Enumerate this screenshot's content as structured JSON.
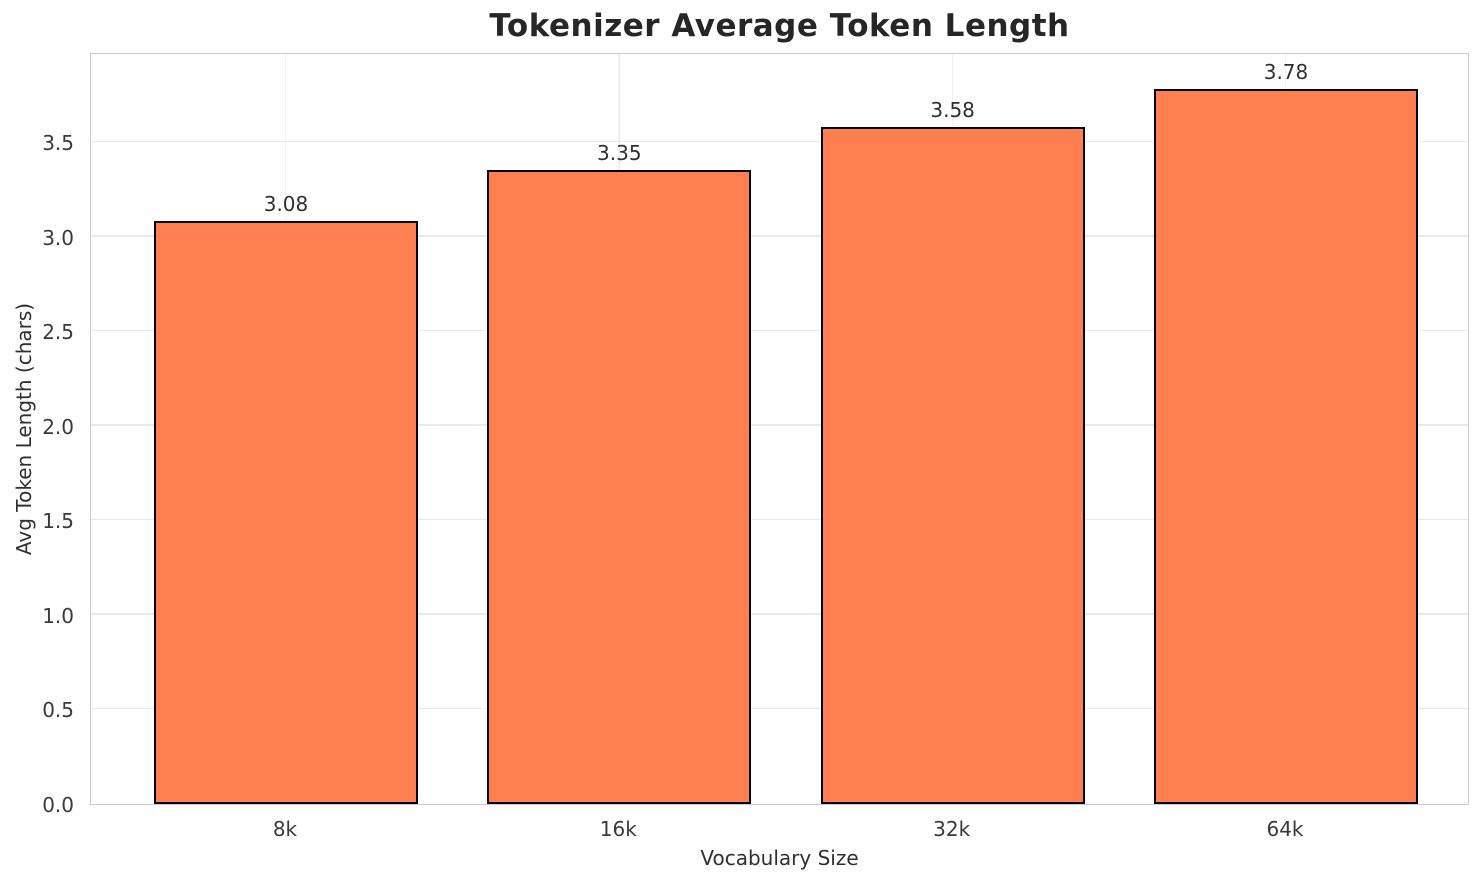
{
  "chart_data": {
    "type": "bar",
    "title": "Tokenizer Average Token Length",
    "categories": [
      "8k",
      "16k",
      "32k",
      "64k"
    ],
    "values": [
      3.08,
      3.35,
      3.58,
      3.78
    ],
    "bar_labels": [
      "3.08",
      "3.35",
      "3.58",
      "3.78"
    ],
    "xlabel": "Vocabulary Size",
    "ylabel": "Avg Token Length (chars)",
    "ylim": [
      0,
      3.976
    ],
    "yticks": [
      0.0,
      0.5,
      1.0,
      1.5,
      2.0,
      2.5,
      3.0,
      3.5
    ],
    "ytick_labels": [
      "0.0",
      "0.5",
      "1.0",
      "1.5",
      "2.0",
      "2.5",
      "3.0",
      "3.5"
    ],
    "grid": true,
    "legend": false,
    "bar_color": "#FF7F50",
    "bar_edge_color": "#000000"
  }
}
